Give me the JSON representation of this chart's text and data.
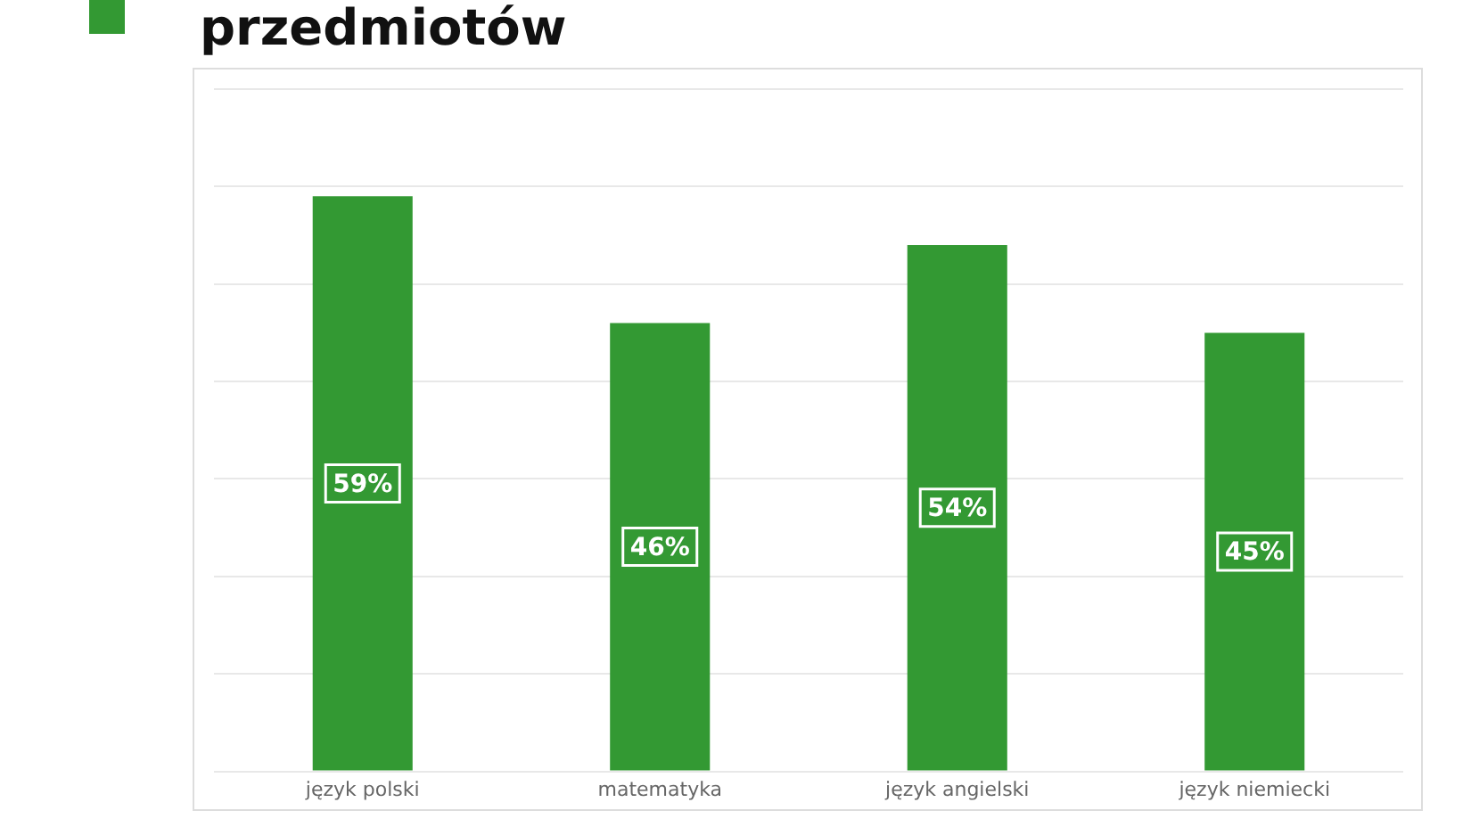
{
  "chart_data": {
    "type": "bar",
    "title": "przedmiotów",
    "categories": [
      "język polski",
      "matematyka",
      "język angielski",
      "język niemiecki"
    ],
    "values": [
      59,
      46,
      54,
      45
    ],
    "color": "#339933",
    "value_labels": [
      "59%",
      "46%",
      "54%",
      "45%"
    ],
    "ylim": [
      0,
      70
    ],
    "yticks": [
      {
        "value": 0,
        "label": null
      },
      {
        "value": 10,
        "label": null
      },
      {
        "value": 20,
        "label": null
      },
      {
        "value": 30,
        "label": null
      },
      {
        "value": 40,
        "label": null
      },
      {
        "value": 50,
        "label": null
      },
      {
        "value": 60,
        "label": null
      },
      {
        "value": 70,
        "label": null
      }
    ],
    "grid": "y",
    "tick_labels": "x",
    "legend": false
  }
}
